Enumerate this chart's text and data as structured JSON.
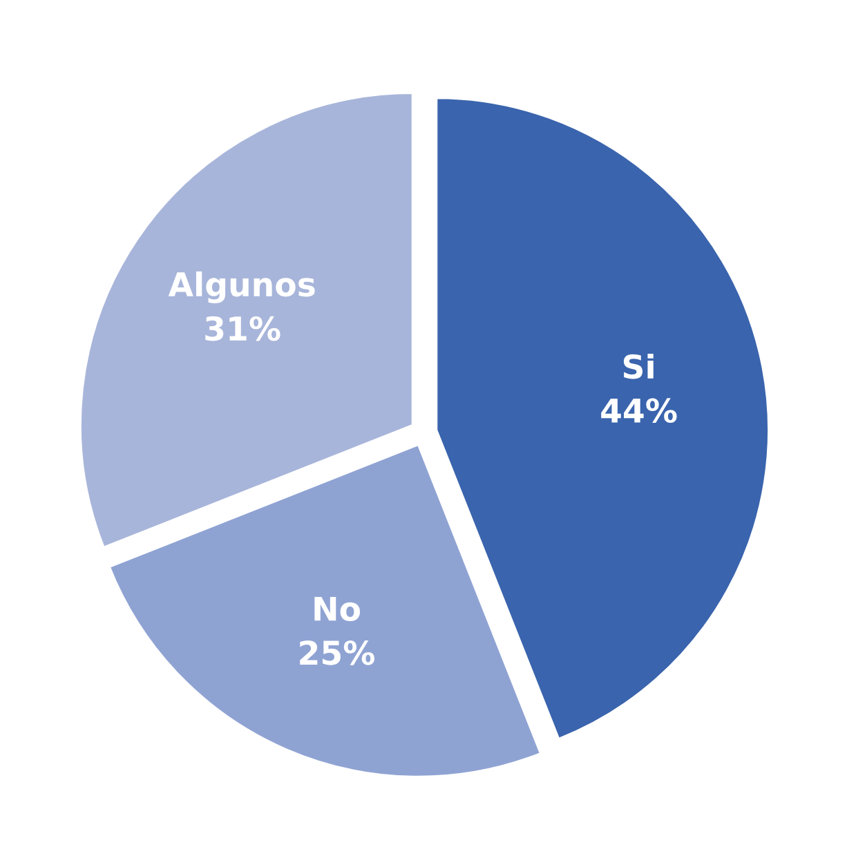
{
  "chart_data": {
    "type": "pie",
    "categories": [
      "Si",
      "No",
      "Algunos"
    ],
    "values": [
      44,
      25,
      31
    ],
    "value_labels": [
      "44%",
      "25%",
      "31%"
    ],
    "colors": [
      "#3a64ad",
      "#8fa3d3",
      "#a8b5da"
    ]
  }
}
